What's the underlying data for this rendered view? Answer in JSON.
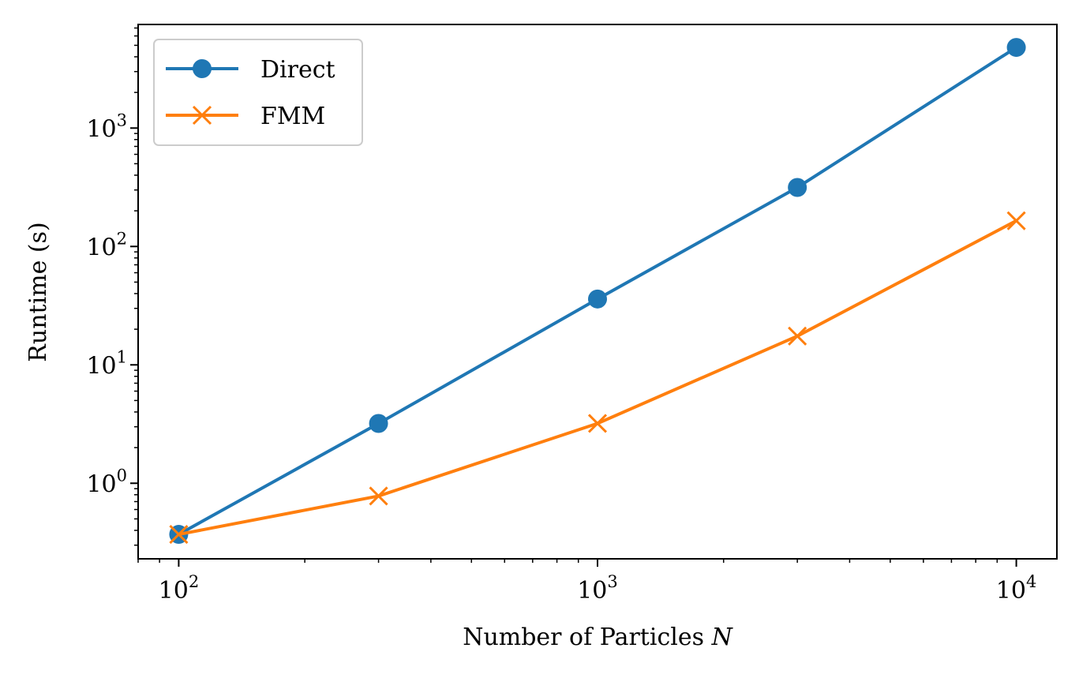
{
  "chart_data": {
    "type": "line",
    "xscale": "log",
    "yscale": "log",
    "x": [
      100,
      300,
      1000,
      3000,
      10000
    ],
    "xlim": [
      80,
      12500
    ],
    "ylim": [
      0.23,
      7500
    ],
    "xlabel": "Number of Particles",
    "xlabel_var": "N",
    "ylabel": "Runtime (s)",
    "xticks": [
      {
        "value": 100,
        "base": "10",
        "exp": "2"
      },
      {
        "value": 1000,
        "base": "10",
        "exp": "3"
      },
      {
        "value": 10000,
        "base": "10",
        "exp": "4"
      }
    ],
    "yticks": [
      {
        "value": 1,
        "base": "10",
        "exp": "0"
      },
      {
        "value": 10,
        "base": "10",
        "exp": "1"
      },
      {
        "value": 100,
        "base": "10",
        "exp": "2"
      },
      {
        "value": 1000,
        "base": "10",
        "exp": "3"
      }
    ],
    "grid": false,
    "legend_position": "top-left",
    "series": [
      {
        "name": "Direct",
        "marker": "circle",
        "color": "#1f77b4",
        "values": [
          0.37,
          3.2,
          36,
          315,
          4800
        ]
      },
      {
        "name": "FMM",
        "marker": "x",
        "color": "#ff7f0e",
        "values": [
          0.37,
          0.78,
          3.2,
          17.5,
          165
        ]
      }
    ]
  }
}
